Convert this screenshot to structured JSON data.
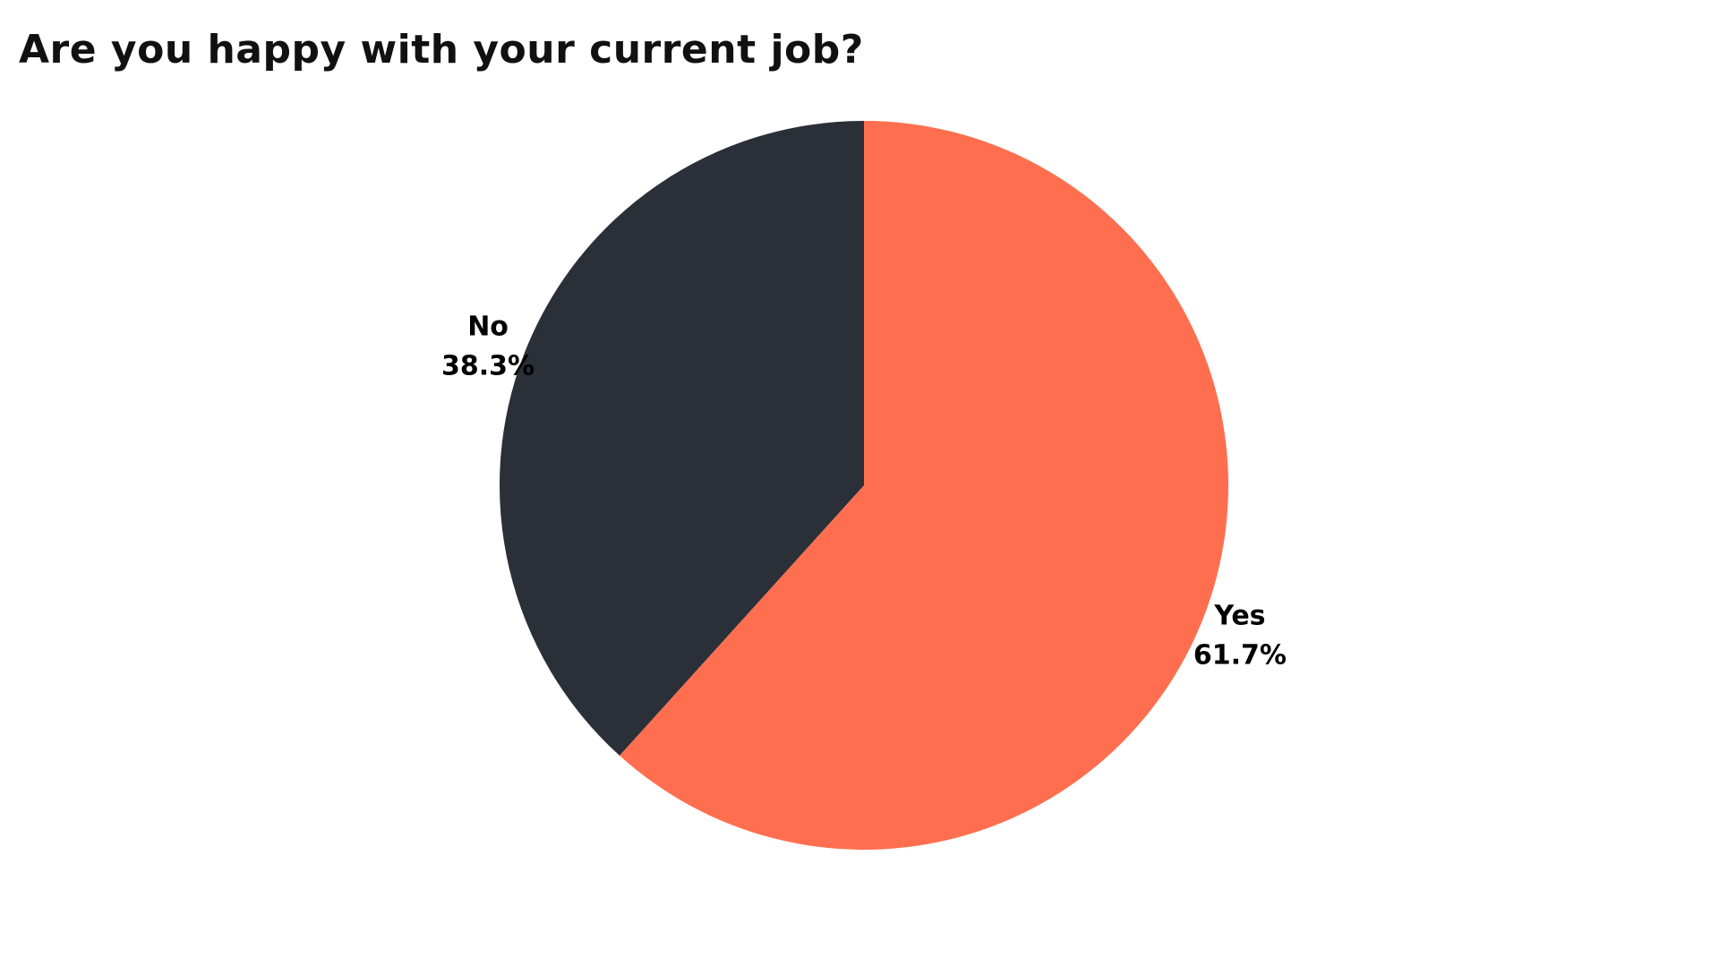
{
  "chart_data": {
    "type": "pie",
    "title": "Are you happy with your current job?",
    "slices": [
      {
        "label": "Yes",
        "value": 61.7,
        "value_label": "61.7%",
        "color": "#FF6F4F"
      },
      {
        "label": "No",
        "value": 38.3,
        "value_label": "38.3%",
        "color": "#2B2F38"
      }
    ],
    "start_angle_deg": 0,
    "direction": "clockwise",
    "legend": "none"
  }
}
